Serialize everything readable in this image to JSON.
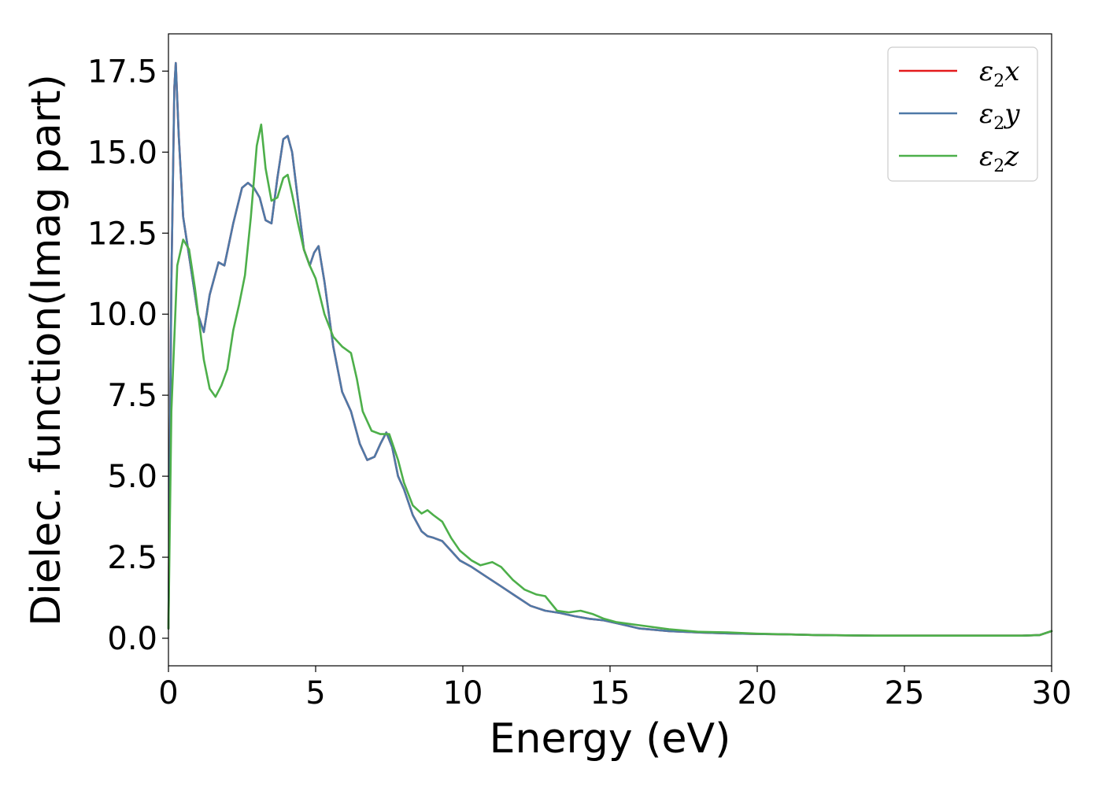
{
  "chart_data": {
    "type": "line",
    "title": "",
    "xlabel": "Energy (eV)",
    "ylabel": "Dielec. function(Imag part)",
    "xlim": [
      0,
      30
    ],
    "ylim": [
      -0.85,
      18.65
    ],
    "xticks": [
      0,
      5,
      10,
      15,
      20,
      25,
      30
    ],
    "yticks": [
      "0.0",
      "2.5",
      "5.0",
      "7.5",
      "10.0",
      "12.5",
      "15.0",
      "17.5"
    ],
    "grid": false,
    "legend_position": "top-right",
    "series": [
      {
        "name": "ε₂x",
        "legend": {
          "symbol": "ε",
          "sub": "2",
          "axis": "x"
        },
        "color": "#e41a1c",
        "x": [
          0,
          0.1,
          0.2,
          0.25,
          0.35,
          0.5,
          0.7,
          1.0,
          1.2,
          1.4,
          1.7,
          1.9,
          2.2,
          2.5,
          2.7,
          2.9,
          3.1,
          3.3,
          3.5,
          3.7,
          3.9,
          4.05,
          4.2,
          4.4,
          4.6,
          4.8,
          4.95,
          5.1,
          5.3,
          5.6,
          5.9,
          6.2,
          6.5,
          6.75,
          7.0,
          7.2,
          7.4,
          7.6,
          7.8,
          8.0,
          8.3,
          8.6,
          8.8,
          9.0,
          9.3,
          9.6,
          9.9,
          10.3,
          10.8,
          11.3,
          11.8,
          12.3,
          12.8,
          13.3,
          13.8,
          14.3,
          14.8,
          15.3,
          16,
          17,
          18,
          19,
          20,
          21,
          22,
          23,
          24,
          25,
          26,
          27,
          28,
          29,
          29.6,
          30
        ],
        "values": [
          0.3,
          11.0,
          17.0,
          17.75,
          15.5,
          13.0,
          11.8,
          10.0,
          9.45,
          10.6,
          11.6,
          11.5,
          12.8,
          13.9,
          14.05,
          13.9,
          13.6,
          12.9,
          12.8,
          14.2,
          15.4,
          15.5,
          15.0,
          13.5,
          12.0,
          11.5,
          11.9,
          12.1,
          11.0,
          9.0,
          7.6,
          7.0,
          6.0,
          5.5,
          5.6,
          6.0,
          6.35,
          5.9,
          5.0,
          4.6,
          3.8,
          3.3,
          3.15,
          3.1,
          3.0,
          2.7,
          2.4,
          2.2,
          1.9,
          1.6,
          1.3,
          1.0,
          0.85,
          0.78,
          0.68,
          0.6,
          0.55,
          0.45,
          0.3,
          0.22,
          0.18,
          0.15,
          0.13,
          0.12,
          0.1,
          0.09,
          0.08,
          0.08,
          0.08,
          0.08,
          0.08,
          0.08,
          0.1,
          0.22
        ]
      },
      {
        "name": "ε₂y",
        "legend": {
          "symbol": "ε",
          "sub": "2",
          "axis": "y"
        },
        "color": "#4e79a7",
        "x": [
          0,
          0.1,
          0.2,
          0.25,
          0.35,
          0.5,
          0.7,
          1.0,
          1.2,
          1.4,
          1.7,
          1.9,
          2.2,
          2.5,
          2.7,
          2.9,
          3.1,
          3.3,
          3.5,
          3.7,
          3.9,
          4.05,
          4.2,
          4.4,
          4.6,
          4.8,
          4.95,
          5.1,
          5.3,
          5.6,
          5.9,
          6.2,
          6.5,
          6.75,
          7.0,
          7.2,
          7.4,
          7.6,
          7.8,
          8.0,
          8.3,
          8.6,
          8.8,
          9.0,
          9.3,
          9.6,
          9.9,
          10.3,
          10.8,
          11.3,
          11.8,
          12.3,
          12.8,
          13.3,
          13.8,
          14.3,
          14.8,
          15.3,
          16,
          17,
          18,
          19,
          20,
          21,
          22,
          23,
          24,
          25,
          26,
          27,
          28,
          29,
          29.6,
          30
        ],
        "values": [
          0.3,
          11.0,
          17.0,
          17.75,
          15.5,
          13.0,
          11.8,
          10.0,
          9.45,
          10.6,
          11.6,
          11.5,
          12.8,
          13.9,
          14.05,
          13.9,
          13.6,
          12.9,
          12.8,
          14.2,
          15.4,
          15.5,
          15.0,
          13.5,
          12.0,
          11.5,
          11.9,
          12.1,
          11.0,
          9.0,
          7.6,
          7.0,
          6.0,
          5.5,
          5.6,
          6.0,
          6.35,
          5.9,
          5.0,
          4.6,
          3.8,
          3.3,
          3.15,
          3.1,
          3.0,
          2.7,
          2.4,
          2.2,
          1.9,
          1.6,
          1.3,
          1.0,
          0.85,
          0.78,
          0.68,
          0.6,
          0.55,
          0.45,
          0.3,
          0.22,
          0.18,
          0.15,
          0.13,
          0.12,
          0.1,
          0.09,
          0.08,
          0.08,
          0.08,
          0.08,
          0.08,
          0.08,
          0.1,
          0.22
        ]
      },
      {
        "name": "ε₂z",
        "legend": {
          "symbol": "ε",
          "sub": "2",
          "axis": "z"
        },
        "color": "#4daf4a",
        "x": [
          0,
          0.1,
          0.3,
          0.5,
          0.7,
          0.9,
          1.2,
          1.4,
          1.6,
          1.8,
          2.0,
          2.2,
          2.4,
          2.6,
          2.8,
          3.0,
          3.15,
          3.3,
          3.5,
          3.7,
          3.9,
          4.05,
          4.2,
          4.4,
          4.6,
          4.8,
          5.0,
          5.3,
          5.6,
          5.9,
          6.2,
          6.4,
          6.6,
          6.9,
          7.2,
          7.5,
          7.8,
          8.0,
          8.3,
          8.6,
          8.8,
          9.0,
          9.3,
          9.6,
          9.9,
          10.3,
          10.6,
          11.0,
          11.3,
          11.7,
          12.1,
          12.5,
          12.8,
          13.2,
          13.6,
          14.0,
          14.4,
          14.8,
          15.2,
          16,
          17,
          18,
          19,
          20,
          21,
          22,
          23,
          24,
          25,
          26,
          27,
          28,
          29,
          29.6,
          30
        ],
        "values": [
          0.3,
          7.0,
          11.5,
          12.3,
          12.0,
          10.8,
          8.6,
          7.7,
          7.45,
          7.8,
          8.3,
          9.5,
          10.3,
          11.2,
          13.0,
          15.2,
          15.85,
          14.5,
          13.5,
          13.6,
          14.2,
          14.3,
          13.7,
          12.8,
          12.0,
          11.5,
          11.1,
          10.0,
          9.3,
          9.0,
          8.8,
          8.0,
          7.0,
          6.4,
          6.3,
          6.3,
          5.5,
          4.8,
          4.1,
          3.85,
          3.95,
          3.8,
          3.6,
          3.1,
          2.7,
          2.4,
          2.25,
          2.35,
          2.2,
          1.8,
          1.5,
          1.35,
          1.3,
          0.85,
          0.8,
          0.85,
          0.75,
          0.6,
          0.5,
          0.4,
          0.28,
          0.2,
          0.18,
          0.14,
          0.12,
          0.1,
          0.09,
          0.08,
          0.08,
          0.08,
          0.08,
          0.08,
          0.08,
          0.1,
          0.22
        ]
      }
    ]
  }
}
